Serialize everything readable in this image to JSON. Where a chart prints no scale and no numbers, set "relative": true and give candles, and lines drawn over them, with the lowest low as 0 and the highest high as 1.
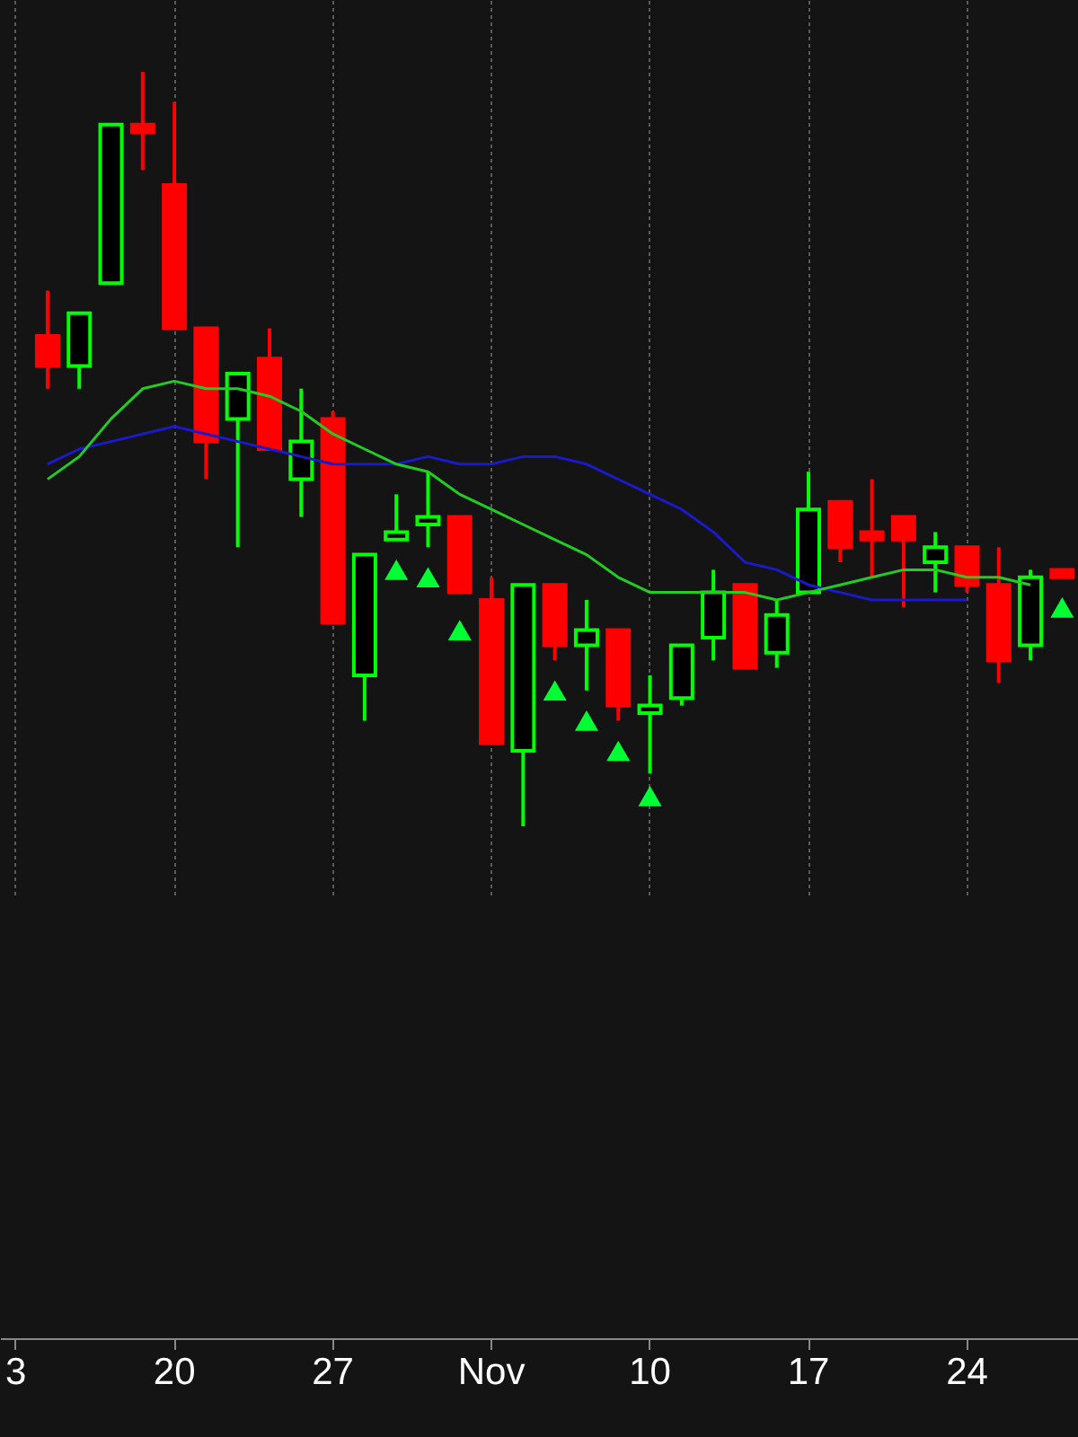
{
  "chart_data": {
    "type": "candlestick",
    "relative": true,
    "grid": "x",
    "categories": [
      "3",
      null,
      null,
      null,
      null,
      "20",
      null,
      null,
      null,
      null,
      "27",
      null,
      null,
      null,
      null,
      "Nov",
      null,
      null,
      null,
      null,
      "10",
      null,
      null,
      null,
      null,
      "17",
      null,
      null,
      null,
      null,
      "24",
      null,
      null,
      null
    ],
    "series": [
      {
        "type": "line",
        "color": "#1a1ac8",
        "values": [
          null,
          0.48,
          0.5,
          0.51,
          0.52,
          0.53,
          0.52,
          0.51,
          0.5,
          0.49,
          0.48,
          0.48,
          0.48,
          0.49,
          0.48,
          0.48,
          0.49,
          0.49,
          0.48,
          0.46,
          0.44,
          0.42,
          0.39,
          0.35,
          0.34,
          0.32,
          0.31,
          0.3,
          0.3,
          0.3,
          0.3,
          null,
          null,
          null
        ]
      },
      {
        "type": "line",
        "color": "#22cc22",
        "values": [
          null,
          0.46,
          0.49,
          0.54,
          0.58,
          0.59,
          0.58,
          0.58,
          0.57,
          0.55,
          0.52,
          0.5,
          0.48,
          0.47,
          0.44,
          0.42,
          0.4,
          0.38,
          0.36,
          0.33,
          0.31,
          0.31,
          0.31,
          0.31,
          0.3,
          0.31,
          0.32,
          0.33,
          0.34,
          0.34,
          0.33,
          0.33,
          0.32,
          null
        ]
      },
      {
        "type": "scatter",
        "color": "#00ff33",
        "marker": "triangle",
        "values": [
          null,
          null,
          null,
          null,
          null,
          null,
          null,
          null,
          null,
          null,
          null,
          null,
          0.34,
          0.33,
          0.26,
          null,
          null,
          0.18,
          0.14,
          0.1,
          0.04,
          null,
          null,
          null,
          null,
          null,
          null,
          null,
          null,
          null,
          null,
          null,
          null,
          0.29
        ]
      },
      {
        "colors": [
          null,
          "#ff0000",
          "#00ff00",
          "#00ff00",
          "#ff0000",
          "#ff0000",
          "#ff0000",
          "#00ff00",
          "#ff0000",
          "#00ff00",
          "#ff0000",
          "#00ff00",
          "#00ff00",
          "#00ff00",
          "#ff0000",
          "#ff0000",
          "#00ff00",
          "#ff0000",
          "#00ff00",
          "#ff0000",
          "#00ff00",
          "#00ff00",
          "#00ff00",
          "#ff0000",
          "#00ff00",
          "#00ff00",
          "#ff0000",
          "#ff0000",
          "#ff0000",
          "#00ff00",
          "#ff0000",
          "#ff0000",
          "#00ff00",
          "#ff0000"
        ],
        "ohlc": [
          null,
          [
            0.65,
            0.71,
            0.58,
            0.61
          ],
          [
            0.61,
            0.68,
            0.58,
            0.68
          ],
          [
            0.72,
            0.93,
            0.72,
            0.93
          ],
          [
            0.93,
            1,
            0.87,
            0.92
          ],
          [
            0.85,
            0.96,
            0.66,
            0.66
          ],
          [
            0.66,
            0.66,
            0.46,
            0.51
          ],
          [
            0.54,
            0.6,
            0.37,
            0.6
          ],
          [
            0.62,
            0.66,
            0.5,
            0.5
          ],
          [
            0.46,
            0.58,
            0.41,
            0.51
          ],
          [
            0.54,
            0.55,
            0.27,
            0.27
          ],
          [
            0.2,
            0.36,
            0.14,
            0.36
          ],
          [
            0.38,
            0.44,
            0.38,
            0.39
          ],
          [
            0.4,
            0.47,
            0.37,
            0.41
          ],
          [
            0.41,
            0.41,
            0.31,
            0.31
          ],
          [
            0.3,
            0.33,
            0.11,
            0.11
          ],
          [
            0.1,
            0.32,
            0,
            0.32
          ],
          [
            0.32,
            0.32,
            0.22,
            0.24
          ],
          [
            0.24,
            0.3,
            0.18,
            0.26
          ],
          [
            0.26,
            0.26,
            0.14,
            0.16
          ],
          [
            0.15,
            0.2,
            0.07,
            0.16
          ],
          [
            0.17,
            0.24,
            0.16,
            0.24
          ],
          [
            0.25,
            0.34,
            0.22,
            0.31
          ],
          [
            0.32,
            0.32,
            0.21,
            0.21
          ],
          [
            0.23,
            0.3,
            0.21,
            0.28
          ],
          [
            0.31,
            0.47,
            0.31,
            0.42
          ],
          [
            0.43,
            0.43,
            0.35,
            0.37
          ],
          [
            0.39,
            0.46,
            0.33,
            0.38
          ],
          [
            0.41,
            0.41,
            0.29,
            0.38
          ],
          [
            0.35,
            0.39,
            0.31,
            0.37
          ],
          [
            0.37,
            0.37,
            0.31,
            0.32
          ],
          [
            0.32,
            0.37,
            0.19,
            0.22
          ],
          [
            0.24,
            0.34,
            0.22,
            0.33
          ],
          [
            0.34,
            0.34,
            0.33,
            0.33
          ]
        ]
      }
    ]
  }
}
